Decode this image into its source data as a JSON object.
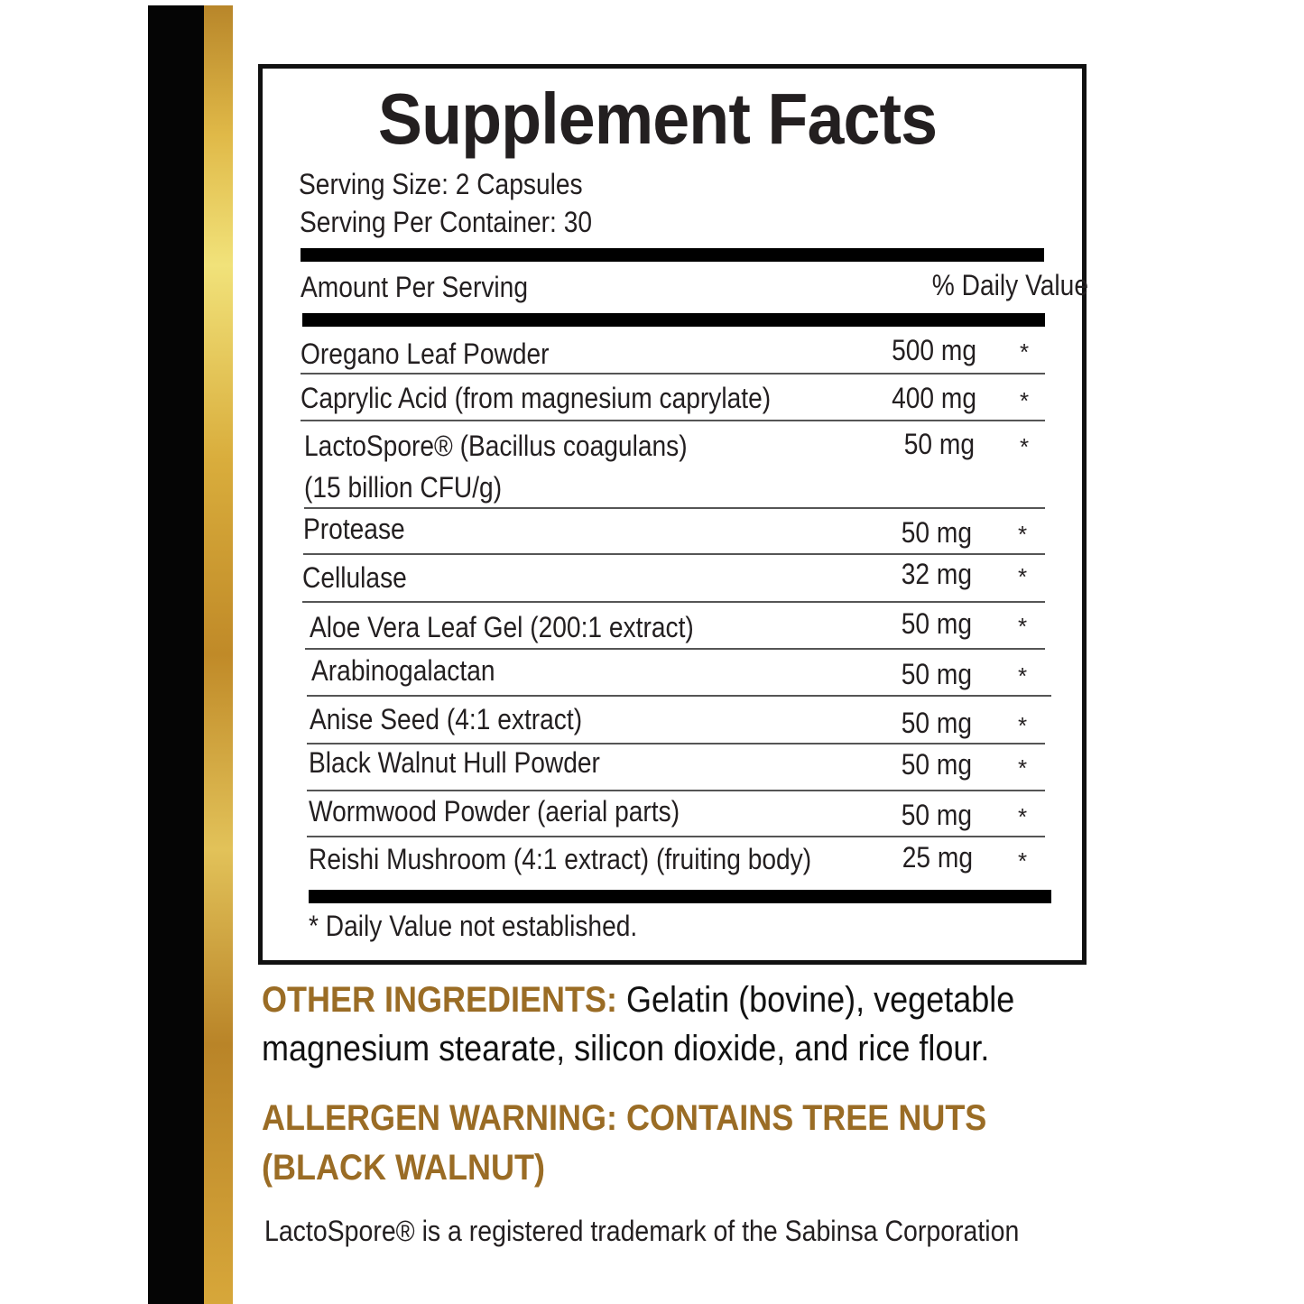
{
  "title": "Supplement Facts",
  "serving_size": "Serving Size: 2 Capsules",
  "servings_per_container": "Serving Per Container: 30",
  "header": {
    "amount_per_serving": "Amount Per Serving",
    "daily_value": "% Daily Value"
  },
  "rows": [
    {
      "name": "Oregano Leaf Powder",
      "amount": "500 mg",
      "dv": "*"
    },
    {
      "name": "Caprylic Acid (from magnesium caprylate)",
      "amount": "400 mg",
      "dv": "*"
    },
    {
      "name": "LactoSpore® (Bacillus coagulans)",
      "name_line2": "(15 billion CFU/g)",
      "amount": "50 mg",
      "dv": "*"
    },
    {
      "name": "Protease",
      "amount": "50 mg",
      "dv": "*"
    },
    {
      "name": "Cellulase",
      "amount": "32 mg",
      "dv": "*"
    },
    {
      "name": "Aloe Vera Leaf Gel (200:1 extract)",
      "amount": "50 mg",
      "dv": "*"
    },
    {
      "name": "Arabinogalactan",
      "amount": "50 mg",
      "dv": "*"
    },
    {
      "name": "Anise Seed (4:1 extract)",
      "amount": "50 mg",
      "dv": "*"
    },
    {
      "name": "Black Walnut Hull Powder",
      "amount": "50 mg",
      "dv": "*"
    },
    {
      "name": "Wormwood Powder (aerial parts)",
      "amount": "50 mg",
      "dv": "*"
    },
    {
      "name": "Reishi Mushroom (4:1 extract) (fruiting body)",
      "amount": "25 mg",
      "dv": "*"
    }
  ],
  "footnote": "* Daily Value not established.",
  "other_ingredients": {
    "label": "OTHER INGREDIENTS:",
    "text_line1": "Gelatin (bovine), vegetable",
    "text_line2": "magnesium stearate, silicon dioxide, and rice flour."
  },
  "allergen_warning": {
    "line1": "ALLERGEN WARNING: CONTAINS TREE NUTS",
    "line2": "(BLACK WALNUT)"
  },
  "trademark_note": "LactoSpore® is a registered trademark of the Sabinsa Corporation",
  "colors": {
    "accent_gold": "#9a6c25",
    "stripe_black": "#050505",
    "stripe_gold": "#e0b948"
  }
}
